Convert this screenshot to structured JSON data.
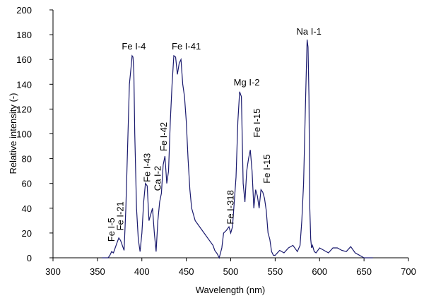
{
  "chart_data": {
    "type": "line",
    "title": "",
    "xlabel": "Wavelength (nm)",
    "ylabel": "Relative intensity (-)",
    "xlim": [
      300,
      700
    ],
    "ylim": [
      0,
      200
    ],
    "x_ticks": [
      300,
      350,
      400,
      450,
      500,
      550,
      600,
      650,
      700
    ],
    "y_ticks": [
      0,
      20,
      40,
      60,
      80,
      100,
      120,
      140,
      160,
      180,
      200
    ],
    "grid": false,
    "legend": "none",
    "colors": {
      "line": "#1a1a6e",
      "axes": "#000000"
    },
    "series": [
      {
        "x": [
          355,
          362,
          364,
          366,
          368,
          370,
          372,
          374,
          376,
          378,
          380,
          382,
          384,
          386,
          388,
          389,
          390,
          391,
          392,
          394,
          396,
          398,
          400,
          402,
          404,
          406,
          408,
          410,
          412,
          414,
          416,
          418,
          420,
          422,
          424,
          426,
          428,
          430,
          432,
          434,
          436,
          438,
          440,
          442,
          444,
          446,
          448,
          450,
          452,
          454,
          456,
          458,
          460,
          465,
          470,
          475,
          480,
          482,
          485,
          487,
          490,
          492,
          495,
          498,
          500,
          502,
          504,
          506,
          508,
          510,
          512,
          514,
          516,
          518,
          520,
          522,
          524,
          526,
          528,
          530,
          532,
          534,
          536,
          538,
          540,
          542,
          544,
          546,
          548,
          550,
          555,
          560,
          565,
          570,
          575,
          578,
          580,
          582,
          584,
          585,
          586,
          587,
          588,
          589,
          590,
          591,
          592,
          594,
          596,
          600,
          605,
          610,
          615,
          620,
          625,
          630,
          635,
          640,
          645,
          650,
          655,
          660
        ],
        "y": [
          0,
          0,
          2,
          5,
          4,
          8,
          12,
          16,
          14,
          10,
          6,
          40,
          90,
          140,
          155,
          163,
          162,
          150,
          100,
          40,
          15,
          5,
          20,
          45,
          60,
          58,
          30,
          35,
          40,
          20,
          5,
          30,
          45,
          52,
          75,
          82,
          60,
          70,
          110,
          140,
          163,
          162,
          148,
          157,
          160,
          140,
          130,
          110,
          80,
          55,
          40,
          35,
          30,
          25,
          20,
          15,
          10,
          6,
          3,
          0,
          8,
          20,
          22,
          25,
          20,
          25,
          45,
          65,
          110,
          134,
          130,
          60,
          45,
          70,
          80,
          87,
          70,
          40,
          55,
          50,
          40,
          55,
          53,
          48,
          38,
          20,
          15,
          5,
          2,
          2,
          6,
          4,
          8,
          10,
          5,
          10,
          30,
          60,
          120,
          150,
          176,
          170,
          130,
          40,
          15,
          8,
          10,
          5,
          4,
          8,
          6,
          4,
          8,
          8,
          6,
          5,
          9,
          4,
          2,
          0,
          0,
          0
        ]
      }
    ],
    "annotations": [
      {
        "text": "Fe I-4",
        "x": 391,
        "y": 168,
        "rotate": false
      },
      {
        "text": "Fe I-41",
        "x": 450,
        "y": 168,
        "rotate": false
      },
      {
        "text": "Na I-1",
        "x": 588,
        "y": 180,
        "rotate": false
      },
      {
        "text": "Mg I-2",
        "x": 518,
        "y": 139,
        "rotate": false
      },
      {
        "text": "Fe I-42",
        "x": 425,
        "y": 86,
        "rotate": true
      },
      {
        "text": "Fe I-43",
        "x": 406,
        "y": 61,
        "rotate": true
      },
      {
        "text": "Ca I-2",
        "x": 418,
        "y": 54,
        "rotate": true
      },
      {
        "text": "Fe I-15",
        "x": 530,
        "y": 97,
        "rotate": true
      },
      {
        "text": "Fe I-15",
        "x": 541,
        "y": 60,
        "rotate": true
      },
      {
        "text": "Fe I-318",
        "x": 500,
        "y": 27,
        "rotate": true
      },
      {
        "text": "Fe I-5",
        "x": 366,
        "y": 13,
        "rotate": true
      },
      {
        "text": "Fe I-21",
        "x": 376,
        "y": 22,
        "rotate": true
      }
    ]
  }
}
